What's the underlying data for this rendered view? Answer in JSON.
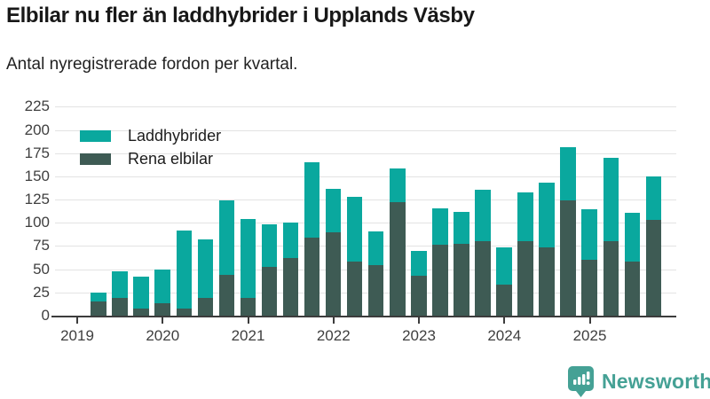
{
  "header": {
    "title": "Elbilar nu fler än laddhybrider i Upplands Väsby",
    "subtitle": "Antal nyregistrerade fordon per kvartal."
  },
  "legend": {
    "items": [
      {
        "label": "Laddhybrider",
        "color": "#0aa89e"
      },
      {
        "label": "Rena elbilar",
        "color": "#3e5b54"
      }
    ]
  },
  "footer": {
    "brand": "Newsworthy",
    "brand_color": "#45a195",
    "logo_icon": "bar-chart-speech-bubble-icon"
  },
  "chart_data": {
    "type": "bar",
    "stacked": true,
    "title": "Elbilar nu fler än laddhybrider i Upplands Väsby",
    "subtitle": "Antal nyregistrerade fordon per kvartal.",
    "grid": true,
    "legend_position": "top-left",
    "ylim": [
      0,
      225
    ],
    "y_ticks": [
      0,
      25,
      50,
      75,
      100,
      125,
      150,
      175,
      200,
      225
    ],
    "x_tick_labels": [
      "2019",
      "2020",
      "2021",
      "2022",
      "2023",
      "2024",
      "2025"
    ],
    "categories": [
      "2019 Q2",
      "2019 Q3",
      "2019 Q4",
      "2020 Q1",
      "2020 Q2",
      "2020 Q3",
      "2020 Q4",
      "2021 Q1",
      "2021 Q2",
      "2021 Q3",
      "2021 Q4",
      "2022 Q1",
      "2022 Q2",
      "2022 Q3",
      "2022 Q4",
      "2023 Q1",
      "2023 Q2",
      "2023 Q3",
      "2023 Q4",
      "2024 Q1",
      "2024 Q2",
      "2024 Q3",
      "2024 Q4",
      "2025 Q1",
      "2025 Q2",
      "2025 Q3",
      "2025 Q4"
    ],
    "series": [
      {
        "name": "Rena elbilar",
        "color": "#3e5b54",
        "values": [
          15,
          19,
          8,
          13,
          8,
          19,
          44,
          19,
          53,
          62,
          84,
          90,
          58,
          54,
          122,
          43,
          76,
          77,
          80,
          33,
          80,
          74,
          124,
          60,
          80,
          58,
          103
        ]
      },
      {
        "name": "Laddhybrider",
        "color": "#0aa89e",
        "values": [
          10,
          29,
          34,
          37,
          84,
          63,
          80,
          85,
          45,
          38,
          81,
          47,
          70,
          37,
          37,
          27,
          40,
          35,
          56,
          41,
          53,
          69,
          58,
          55,
          90,
          53,
          47
        ]
      }
    ],
    "totals": [
      25,
      48,
      42,
      50,
      92,
      82,
      124,
      104,
      98,
      100,
      165,
      137,
      128,
      91,
      159,
      70,
      116,
      112,
      136,
      74,
      133,
      143,
      182,
      115,
      170,
      111,
      150
    ]
  }
}
